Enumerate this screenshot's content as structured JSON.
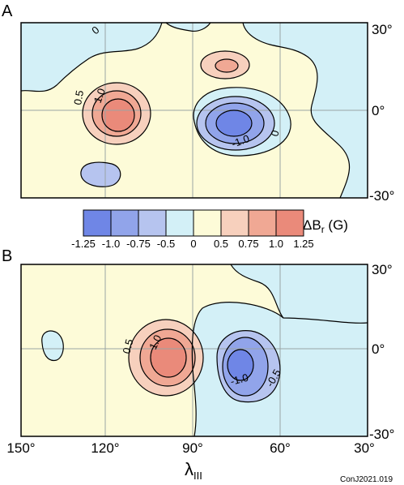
{
  "chart_data": [
    {
      "type": "heatmap",
      "panel": "A",
      "contour_levels": [
        -1.25,
        -1.0,
        -0.75,
        -0.5,
        0,
        0.5,
        0.75,
        1.0,
        1.25
      ],
      "contour_labels": [
        "0",
        "0.5",
        "1.0",
        "-1.0",
        "0"
      ],
      "y_ticks": [
        "30°",
        "0°",
        "-30°"
      ]
    },
    {
      "type": "heatmap",
      "panel": "B",
      "contour_labels": [
        "0.5",
        "1.0",
        "-1.0",
        "-0.5"
      ],
      "y_ticks": [
        "30°",
        "0°",
        "-30°"
      ],
      "x_ticks": [
        "150°",
        "120°",
        "90°",
        "60°",
        "30°"
      ],
      "xlabel": "λ",
      "xlabel_sub": "III"
    }
  ],
  "colorbar": {
    "label": "ΔB",
    "label_sub": "r",
    "label_unit": " (G)",
    "ticks": [
      "-1.25",
      "-1.0",
      "-0.75",
      "-0.5",
      "0",
      "0.5",
      "0.75",
      "1.0",
      "1.25"
    ],
    "colors": [
      "#6f86e6",
      "#91a4ea",
      "#b6c4ef",
      "#d3f0f7",
      "#fdfbd8",
      "#f7d0bd",
      "#f0a894",
      "#ea8a7a"
    ]
  },
  "credit": "ConJ2021.019",
  "colors": {
    "neg_strong": "#6f86e6",
    "neg_mid": "#91a4ea",
    "neg_weak": "#b6c4ef",
    "neg_faint": "#d3f0f7",
    "pos_faint": "#fdfbd8",
    "pos_weak": "#f7d0bd",
    "pos_mid": "#f0a894",
    "pos_strong": "#ea8a7a"
  }
}
